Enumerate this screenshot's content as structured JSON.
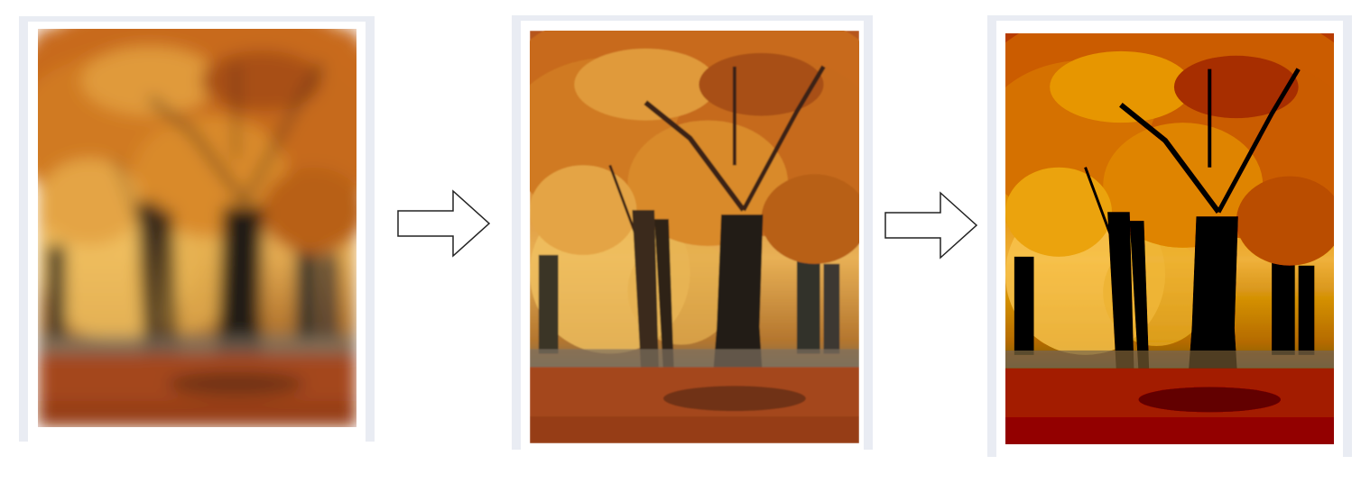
{
  "figure": {
    "panels": [
      {
        "name": "blurred-autumn-forest-image",
        "stage": 1
      },
      {
        "name": "sharpened-autumn-forest-image",
        "stage": 2
      },
      {
        "name": "enhanced-autumn-forest-image",
        "stage": 3
      }
    ],
    "arrows": [
      {
        "icon": "right-arrow-icon"
      },
      {
        "icon": "right-arrow-icon"
      }
    ],
    "colors": {
      "frame": "#e9ecf3",
      "foliage_light": "#e8a040",
      "foliage_mid": "#c96f1f",
      "foliage_dark": "#7a3a10",
      "trunk": "#2a1d14",
      "ground": "#a84a1e"
    }
  }
}
